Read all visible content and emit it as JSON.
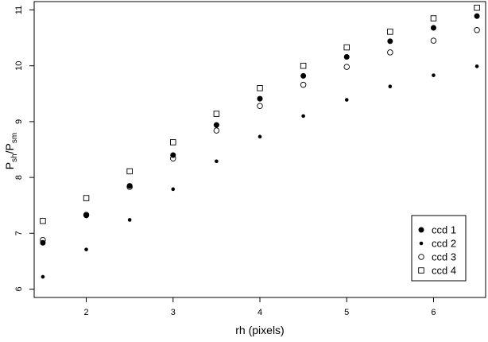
{
  "chart_data": {
    "type": "scatter",
    "title": "",
    "xlabel": "rh (pixels)",
    "ylabel": {
      "base": "P",
      "sub": "sh",
      "divider": "/",
      "base2": "P",
      "sub2": "sm"
    },
    "xlim": [
      1.4,
      6.6
    ],
    "ylim": [
      5.85,
      11.15
    ],
    "xticks": [
      2,
      3,
      4,
      5,
      6
    ],
    "yticks": [
      6,
      7,
      8,
      9,
      10,
      11
    ],
    "grid": false,
    "legend_position": "bottom-right",
    "x": [
      1.5,
      2.0,
      2.5,
      3.0,
      3.5,
      4.0,
      4.5,
      5.0,
      5.5,
      6.0,
      6.5
    ],
    "series": [
      {
        "name": "ccd 1",
        "marker": "filled-circle-large",
        "values": [
          6.83,
          7.32,
          7.85,
          8.4,
          8.94,
          9.41,
          9.82,
          10.16,
          10.44,
          10.68,
          10.89
        ]
      },
      {
        "name": "ccd 2",
        "marker": "filled-circle-small",
        "values": [
          6.22,
          6.71,
          7.24,
          7.79,
          8.29,
          8.73,
          9.1,
          9.39,
          9.63,
          9.83,
          9.99
        ]
      },
      {
        "name": "ccd 3",
        "marker": "open-circle",
        "values": [
          6.88,
          7.33,
          7.83,
          8.34,
          8.84,
          9.28,
          9.66,
          9.98,
          10.24,
          10.45,
          10.64
        ]
      },
      {
        "name": "ccd 4",
        "marker": "open-square",
        "values": [
          7.22,
          7.63,
          8.11,
          8.63,
          9.14,
          9.6,
          10.0,
          10.33,
          10.61,
          10.85,
          11.04
        ]
      }
    ],
    "colors": {
      "ink": "#000000",
      "background": "#ffffff"
    }
  }
}
